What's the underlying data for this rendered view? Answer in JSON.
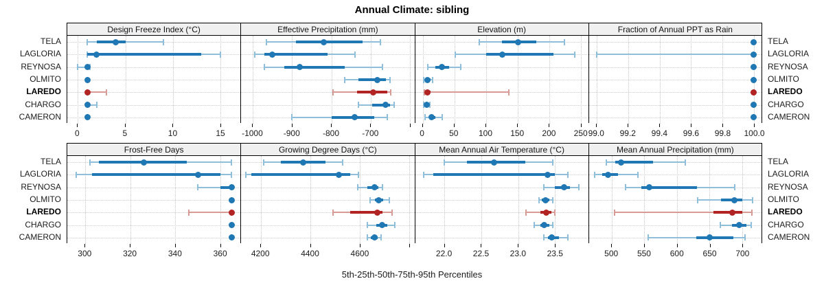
{
  "title": "Annual Climate: sibling",
  "caption": "5th-25th-50th-75th-95th Percentiles",
  "locations": [
    "TELA",
    "LAGLORIA",
    "REYNOSA",
    "OLMITO",
    "LAREDO",
    "CHARGO",
    "CAMERON"
  ],
  "highlight_location": "LAREDO",
  "colors": {
    "normal_strong": "#1f77b4",
    "normal_light": "#8fbeda",
    "highlight_strong": "#b22424",
    "highlight_light": "#d89a94",
    "grid": "#c8c8c8",
    "strip_bg": "#f0f0f0",
    "panel_border": "#000000"
  },
  "chart_data": {
    "type": "dot-whisker-percentiles",
    "percentiles": [
      5,
      25,
      50,
      75,
      95
    ],
    "legend_note": "median dot, 25-75 thick bar, 5-95 thin bar with end caps",
    "panels": [
      {
        "title": "Design Freeze Index (°C)",
        "row": 0,
        "xlim": [
          -1.1,
          17.1
        ],
        "ticks": [
          {
            "v": 0,
            "label": "0"
          },
          {
            "v": 5,
            "label": "5"
          },
          {
            "v": 10,
            "label": "10"
          },
          {
            "v": 15,
            "label": "15"
          }
        ],
        "series": [
          {
            "name": "TELA",
            "values": [
              1,
              2,
              4,
              5,
              9
            ]
          },
          {
            "name": "LAGLORIA",
            "values": [
              1,
              1,
              2,
              13,
              15
            ]
          },
          {
            "name": "REYNOSA",
            "values": [
              0,
              0.8,
              1,
              1.2,
              1.3
            ]
          },
          {
            "name": "OLMITO",
            "values": [
              1,
              1,
              1,
              1,
              1
            ]
          },
          {
            "name": "LAREDO",
            "values": [
              1,
              1,
              1,
              1.2,
              3
            ]
          },
          {
            "name": "CHARGO",
            "values": [
              1,
              1,
              1,
              1.2,
              2
            ]
          },
          {
            "name": "CAMERON",
            "values": [
              1,
              1,
              1,
              1,
              1
            ]
          }
        ]
      },
      {
        "title": "Effective Precipitation (mm)",
        "row": 0,
        "xlim": [
          -1030,
          -588
        ],
        "ticks": [
          {
            "v": -1000,
            "label": "-1000"
          },
          {
            "v": -900,
            "label": "-900"
          },
          {
            "v": -800,
            "label": "-800"
          },
          {
            "v": -700,
            "label": "-700"
          },
          {
            "v": -600,
            "label": ""
          }
        ],
        "series": [
          {
            "name": "TELA",
            "values": [
              -965,
              -890,
              -820,
              -720,
              -675
            ]
          },
          {
            "name": "LAGLORIA",
            "values": [
              -995,
              -970,
              -950,
              -810,
              -740
            ]
          },
          {
            "name": "REYNOSA",
            "values": [
              -970,
              -920,
              -880,
              -765,
              -670
            ]
          },
          {
            "name": "OLMITO",
            "values": [
              -765,
              -730,
              -682,
              -660,
              -650
            ]
          },
          {
            "name": "LAREDO",
            "values": [
              -795,
              -735,
              -693,
              -657,
              -648
            ]
          },
          {
            "name": "CHARGO",
            "values": [
              -730,
              -695,
              -662,
              -650,
              -640
            ]
          },
          {
            "name": "CAMERON",
            "values": [
              -900,
              -800,
              -740,
              -690,
              -658
            ]
          }
        ]
      },
      {
        "title": "Elevation (m)",
        "row": 0,
        "xlim": [
          -12,
          262
        ],
        "ticks": [
          {
            "v": 0,
            "label": "0"
          },
          {
            "v": 50,
            "label": "50"
          },
          {
            "v": 100,
            "label": "100"
          },
          {
            "v": 150,
            "label": "150"
          },
          {
            "v": 200,
            "label": "200"
          },
          {
            "v": 250,
            "label": "250"
          }
        ],
        "series": [
          {
            "name": "TELA",
            "values": [
              90,
              125,
              151,
              180,
              224
            ]
          },
          {
            "name": "LAGLORIA",
            "values": [
              52,
              100,
              126,
              207,
              241
            ]
          },
          {
            "name": "REYNOSA",
            "values": [
              8,
              20,
              30,
              42,
              60
            ]
          },
          {
            "name": "OLMITO",
            "values": [
              2,
              5,
              8,
              12,
              16
            ]
          },
          {
            "name": "LAREDO",
            "values": [
              3,
              5,
              8,
              12,
              136
            ]
          },
          {
            "name": "CHARGO",
            "values": [
              2,
              4,
              6,
              9,
              11
            ]
          },
          {
            "name": "CAMERON",
            "values": [
              4,
              10,
              14,
              20,
              31
            ]
          }
        ]
      },
      {
        "title": "Fraction of Annual PPT as Rain",
        "row": 0,
        "xlim": [
          98.95,
          100.05
        ],
        "ticks": [
          {
            "v": 99.0,
            "label": "99.0"
          },
          {
            "v": 99.2,
            "label": "99.2"
          },
          {
            "v": 99.4,
            "label": "99.4"
          },
          {
            "v": 99.6,
            "label": "99.6"
          },
          {
            "v": 99.8,
            "label": "99.8"
          },
          {
            "v": 100.0,
            "label": "100.0"
          }
        ],
        "series": [
          {
            "name": "TELA",
            "values": [
              100,
              100,
              100,
              100,
              100
            ]
          },
          {
            "name": "LAGLORIA",
            "values": [
              99.0,
              100,
              100,
              100,
              100
            ]
          },
          {
            "name": "REYNOSA",
            "values": [
              100,
              100,
              100,
              100,
              100
            ]
          },
          {
            "name": "OLMITO",
            "values": [
              100,
              100,
              100,
              100,
              100
            ]
          },
          {
            "name": "LAREDO",
            "values": [
              100,
              100,
              100,
              100,
              100
            ]
          },
          {
            "name": "CHARGO",
            "values": [
              100,
              100,
              100,
              100,
              100
            ]
          },
          {
            "name": "CAMERON",
            "values": [
              100,
              100,
              100,
              100,
              100
            ]
          }
        ]
      },
      {
        "title": "Frost-Free Days",
        "row": 1,
        "xlim": [
          292,
          369
        ],
        "ticks": [
          {
            "v": 300,
            "label": "300"
          },
          {
            "v": 320,
            "label": "320"
          },
          {
            "v": 340,
            "label": "340"
          },
          {
            "v": 360,
            "label": "360"
          }
        ],
        "series": [
          {
            "name": "TELA",
            "values": [
              302,
              306,
              326,
              345,
              365
            ]
          },
          {
            "name": "LAGLORIA",
            "values": [
              296,
              303,
              350,
              360,
              365
            ]
          },
          {
            "name": "REYNOSA",
            "values": [
              350,
              360,
              365,
              365,
              365
            ]
          },
          {
            "name": "OLMITO",
            "values": [
              365,
              365,
              365,
              365,
              365
            ]
          },
          {
            "name": "LAREDO",
            "values": [
              346,
              365,
              365,
              365,
              365
            ]
          },
          {
            "name": "CHARGO",
            "values": [
              365,
              365,
              365,
              365,
              365
            ]
          },
          {
            "name": "CAMERON",
            "values": [
              365,
              365,
              365,
              365,
              365
            ]
          }
        ]
      },
      {
        "title": "Growing Degree Days (°C)",
        "row": 1,
        "xlim": [
          4120,
          4820
        ],
        "ticks": [
          {
            "v": 4200,
            "label": "4200"
          },
          {
            "v": 4400,
            "label": "4400"
          },
          {
            "v": 4600,
            "label": "4600"
          },
          {
            "v": 4800,
            "label": ""
          }
        ],
        "series": [
          {
            "name": "TELA",
            "values": [
              4210,
              4280,
              4370,
              4460,
              4530
            ]
          },
          {
            "name": "LAGLORIA",
            "values": [
              4140,
              4160,
              4515,
              4560,
              4595
            ]
          },
          {
            "name": "REYNOSA",
            "values": [
              4590,
              4630,
              4660,
              4675,
              4690
            ]
          },
          {
            "name": "OLMITO",
            "values": [
              4640,
              4660,
              4675,
              4695,
              4720
            ]
          },
          {
            "name": "LAREDO",
            "values": [
              4490,
              4560,
              4670,
              4690,
              4730
            ]
          },
          {
            "name": "CHARGO",
            "values": [
              4630,
              4665,
              4690,
              4710,
              4740
            ]
          },
          {
            "name": "CAMERON",
            "values": [
              4630,
              4645,
              4660,
              4672,
              4685
            ]
          }
        ]
      },
      {
        "title": "Mean Annual Air Temperature (°C)",
        "row": 1,
        "xlim": [
          21.6,
          23.95
        ],
        "ticks": [
          {
            "v": 22.0,
            "label": "22.0"
          },
          {
            "v": 22.5,
            "label": "22.5"
          },
          {
            "v": 23.0,
            "label": "23.0"
          },
          {
            "v": 23.5,
            "label": "23.5"
          }
        ],
        "series": [
          {
            "name": "TELA",
            "values": [
              22.0,
              22.3,
              22.67,
              23.1,
              23.47
            ]
          },
          {
            "name": "LAGLORIA",
            "values": [
              21.72,
              21.85,
              23.4,
              23.5,
              23.67
            ]
          },
          {
            "name": "REYNOSA",
            "values": [
              23.35,
              23.5,
              23.62,
              23.7,
              23.82
            ]
          },
          {
            "name": "OLMITO",
            "values": [
              23.28,
              23.32,
              23.37,
              23.42,
              23.47
            ]
          },
          {
            "name": "LAREDO",
            "values": [
              23.1,
              23.3,
              23.38,
              23.45,
              23.5
            ]
          },
          {
            "name": "CHARGO",
            "values": [
              23.22,
              23.3,
              23.35,
              23.42,
              23.47
            ]
          },
          {
            "name": "CAMERON",
            "values": [
              23.35,
              23.4,
              23.45,
              23.55,
              23.67
            ]
          }
        ]
      },
      {
        "title": "Mean Annual Precipitation (mm)",
        "row": 1,
        "xlim": [
          465,
          730
        ],
        "ticks": [
          {
            "v": 500,
            "label": "500"
          },
          {
            "v": 550,
            "label": "550"
          },
          {
            "v": 600,
            "label": "600"
          },
          {
            "v": 650,
            "label": "650"
          },
          {
            "v": 700,
            "label": "700"
          }
        ],
        "series": [
          {
            "name": "TELA",
            "values": [
              492,
              505,
              514,
              563,
              613
            ]
          },
          {
            "name": "LAGLORIA",
            "values": [
              474,
              485,
              494,
              510,
              540
            ]
          },
          {
            "name": "REYNOSA",
            "values": [
              521,
              545,
              558,
              631,
              689
            ]
          },
          {
            "name": "OLMITO",
            "values": [
              632,
              668,
              688,
              700,
              716
            ]
          },
          {
            "name": "LAREDO",
            "values": [
              504,
              656,
              685,
              700,
              715
            ]
          },
          {
            "name": "CHARGO",
            "values": [
              667,
              685,
              696,
              707,
              714
            ]
          },
          {
            "name": "CAMERON",
            "values": [
              556,
              630,
              650,
              687,
              705
            ]
          }
        ]
      }
    ]
  }
}
